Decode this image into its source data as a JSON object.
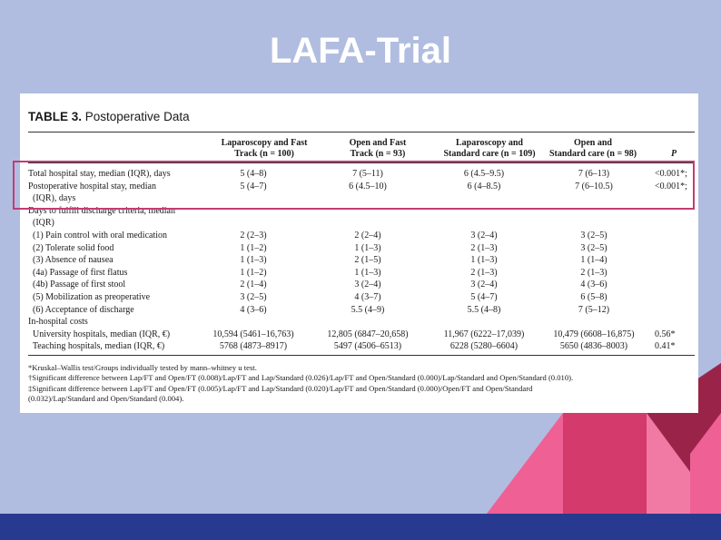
{
  "slide": {
    "title": "LAFA-Trial"
  },
  "table": {
    "title_bold": "TABLE 3.",
    "title_rest": " Postoperative Data",
    "headers": [
      [
        "Laparoscopy and Fast",
        "Track (n = 100)"
      ],
      [
        "Open and Fast",
        "Track (n = 93)"
      ],
      [
        "Laparoscopy and",
        "Standard care (n = 109)"
      ],
      [
        "Open and",
        "Standard care (n = 98)"
      ],
      [
        "P",
        ""
      ]
    ],
    "rows": [
      [
        "Total hospital stay, median (IQR), days",
        "5 (4–8)",
        "7 (5–11)",
        "6 (4.5–9.5)",
        "7 (6–13)",
        "<0.001*;"
      ],
      [
        "Postoperative hospital stay, median",
        "5 (4–7)",
        "6 (4.5–10)",
        "6 (4–8.5)",
        "7 (6–10.5)",
        "<0.001*;"
      ],
      [
        "  (IQR), days",
        "",
        "",
        "",
        "",
        ""
      ],
      [
        "Days to fulfill discharge criteria, median",
        "",
        "",
        "",
        "",
        ""
      ],
      [
        "  (IQR)",
        "",
        "",
        "",
        "",
        ""
      ],
      [
        "  (1) Pain control with oral medication",
        "2 (2–3)",
        "2 (2–4)",
        "3 (2–4)",
        "3 (2–5)",
        ""
      ],
      [
        "  (2) Tolerate solid food",
        "1 (1–2)",
        "1 (1–3)",
        "2 (1–3)",
        "3 (2–5)",
        ""
      ],
      [
        "  (3) Absence of nausea",
        "1 (1–3)",
        "2 (1–5)",
        "1 (1–3)",
        "1 (1–4)",
        ""
      ],
      [
        "  (4a) Passage of first flatus",
        "1 (1–2)",
        "1 (1–3)",
        "2 (1–3)",
        "2 (1–3)",
        ""
      ],
      [
        "  (4b) Passage of first stool",
        "2 (1–4)",
        "3 (2–4)",
        "3 (2–4)",
        "4 (3–6)",
        ""
      ],
      [
        "  (5) Mobilization as preoperative",
        "3 (2–5)",
        "4 (3–7)",
        "5 (4–7)",
        "6 (5–8)",
        ""
      ],
      [
        "  (6) Acceptance of discharge",
        "4 (3–6)",
        "5.5 (4–9)",
        "5.5 (4–8)",
        "7 (5–12)",
        ""
      ],
      [
        "In-hospital costs",
        "",
        "",
        "",
        "",
        ""
      ],
      [
        "  University hospitals, median (IQR, €)",
        "10,594 (5461–16,763)",
        "12,805 (6847–20,658)",
        "11,967 (6222–17,039)",
        "10,479 (6608–16,875)",
        "0.56*"
      ],
      [
        "  Teaching hospitals, median (IQR, €)",
        "5768 (4873–8917)",
        "5497 (4506–6513)",
        "6228 (5280–6604)",
        "5650 (4836–8003)",
        "0.41*"
      ]
    ],
    "footnotes": [
      "*Kruskal–Wallis test/Groups individually tested by mann–whitney u test.",
      "†Significant difference between Lap/FT and Open/FT (0.008)/Lap/FT and Lap/Standard (0.026)/Lap/FT and Open/Standard (0.000)/Lap/Standard and Open/Standard (0.010).",
      "‡Significant   difference   between   Lap/FT   and   Open/FT (0.005)/Lap/FT   and   Lap/Standard   (0.020)/Lap/FT   and   Open/Standard   (0.000)/Open/FT   and   Open/Standard",
      "(0.032)/Lap/Standard and Open/Standard (0.004)."
    ]
  },
  "colors": {
    "background": "#b0bde0",
    "bar": "#283a8f",
    "highlight": "#c23d74",
    "deco_pink": "#ef6095",
    "deco_magenta": "#d43a6c",
    "deco_maroon": "#9a2449"
  }
}
